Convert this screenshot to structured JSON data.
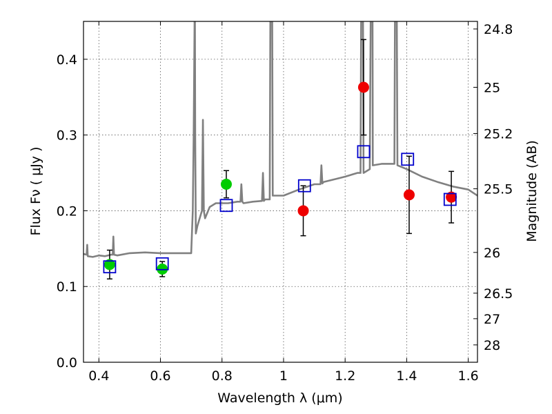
{
  "chart_data": {
    "type": "scatter",
    "xlabel": "Wavelength  λ (μm)",
    "ylabel": "Flux  Fν  ( μJy )",
    "y2label": "Magnitude (AB)",
    "xlim": [
      0.35,
      1.63
    ],
    "ylim": [
      0.0,
      0.45
    ],
    "xticks": [
      "0.4",
      "0.6",
      "0.8",
      "1",
      "1.2",
      "1.4",
      "1.6"
    ],
    "xtick_values": [
      0.4,
      0.6,
      0.8,
      1.0,
      1.2,
      1.4,
      1.6
    ],
    "yticks": [
      "0.0",
      "0.1",
      "0.2",
      "0.3",
      "0.4"
    ],
    "ytick_values": [
      0.0,
      0.1,
      0.2,
      0.3,
      0.4
    ],
    "y2ticks": [
      "24.8",
      "25",
      "25.2",
      "25.5",
      "26",
      "26.5",
      "27",
      "28"
    ],
    "y2tick_flux": [
      0.44,
      0.363,
      0.302,
      0.229,
      0.145,
      0.0912,
      0.0575,
      0.0229
    ],
    "grid": true,
    "series": [
      {
        "marker": "circle",
        "color": "#00cc00",
        "points": [
          {
            "x": 0.435,
            "y": 0.129,
            "err": 0.019
          },
          {
            "x": 0.606,
            "y": 0.123,
            "err": 0.01
          },
          {
            "x": 0.814,
            "y": 0.235,
            "err": 0.018
          }
        ]
      },
      {
        "marker": "circle",
        "color": "#ee0000",
        "points": [
          {
            "x": 1.064,
            "y": 0.2,
            "err": 0.033
          },
          {
            "x": 1.26,
            "y": 0.363,
            "err": 0.063
          },
          {
            "x": 1.408,
            "y": 0.221,
            "err": 0.051
          },
          {
            "x": 1.545,
            "y": 0.218,
            "err": 0.034
          }
        ]
      },
      {
        "marker": "open-square",
        "color": "#0000cc",
        "points": [
          {
            "x": 0.435,
            "y": 0.126
          },
          {
            "x": 0.606,
            "y": 0.13
          },
          {
            "x": 0.814,
            "y": 0.207
          },
          {
            "x": 1.068,
            "y": 0.233
          },
          {
            "x": 1.26,
            "y": 0.278
          },
          {
            "x": 1.403,
            "y": 0.268
          },
          {
            "x": 1.541,
            "y": 0.215
          }
        ]
      }
    ],
    "model_spectrum": {
      "color": "#808080",
      "x": [
        0.35,
        0.36,
        0.362,
        0.364,
        0.38,
        0.4,
        0.42,
        0.44,
        0.445,
        0.447,
        0.449,
        0.46,
        0.5,
        0.55,
        0.6,
        0.65,
        0.7,
        0.705,
        0.708,
        0.711,
        0.712,
        0.713,
        0.715,
        0.72,
        0.735,
        0.738,
        0.741,
        0.745,
        0.76,
        0.78,
        0.8,
        0.82,
        0.85,
        0.86,
        0.863,
        0.866,
        0.87,
        0.9,
        0.93,
        0.933,
        0.936,
        0.94,
        0.955,
        0.957,
        0.959,
        0.961,
        0.963,
        0.965,
        1.0,
        1.05,
        1.1,
        1.12,
        1.123,
        1.126,
        1.13,
        1.18,
        1.2,
        1.24,
        1.25,
        1.252,
        1.255,
        1.258,
        1.26,
        1.28,
        1.283,
        1.286,
        1.289,
        1.29,
        1.32,
        1.35,
        1.36,
        1.362,
        1.365,
        1.368,
        1.37,
        1.4,
        1.45,
        1.5,
        1.55,
        1.6,
        1.63
      ],
      "y": [
        0.143,
        0.142,
        0.155,
        0.14,
        0.139,
        0.141,
        0.14,
        0.142,
        0.142,
        0.166,
        0.142,
        0.141,
        0.144,
        0.145,
        0.144,
        0.144,
        0.144,
        0.2,
        0.3,
        0.45,
        0.45,
        0.3,
        0.17,
        0.18,
        0.2,
        0.32,
        0.2,
        0.19,
        0.205,
        0.21,
        0.21,
        0.21,
        0.212,
        0.212,
        0.235,
        0.212,
        0.21,
        0.212,
        0.213,
        0.25,
        0.213,
        0.215,
        0.215,
        0.45,
        0.45,
        0.45,
        0.45,
        0.22,
        0.22,
        0.228,
        0.235,
        0.235,
        0.26,
        0.236,
        0.238,
        0.243,
        0.245,
        0.25,
        0.25,
        0.45,
        0.45,
        0.45,
        0.25,
        0.255,
        0.45,
        0.45,
        0.45,
        0.26,
        0.262,
        0.262,
        0.262,
        0.45,
        0.45,
        0.45,
        0.26,
        0.255,
        0.245,
        0.238,
        0.232,
        0.228,
        0.22
      ]
    }
  }
}
